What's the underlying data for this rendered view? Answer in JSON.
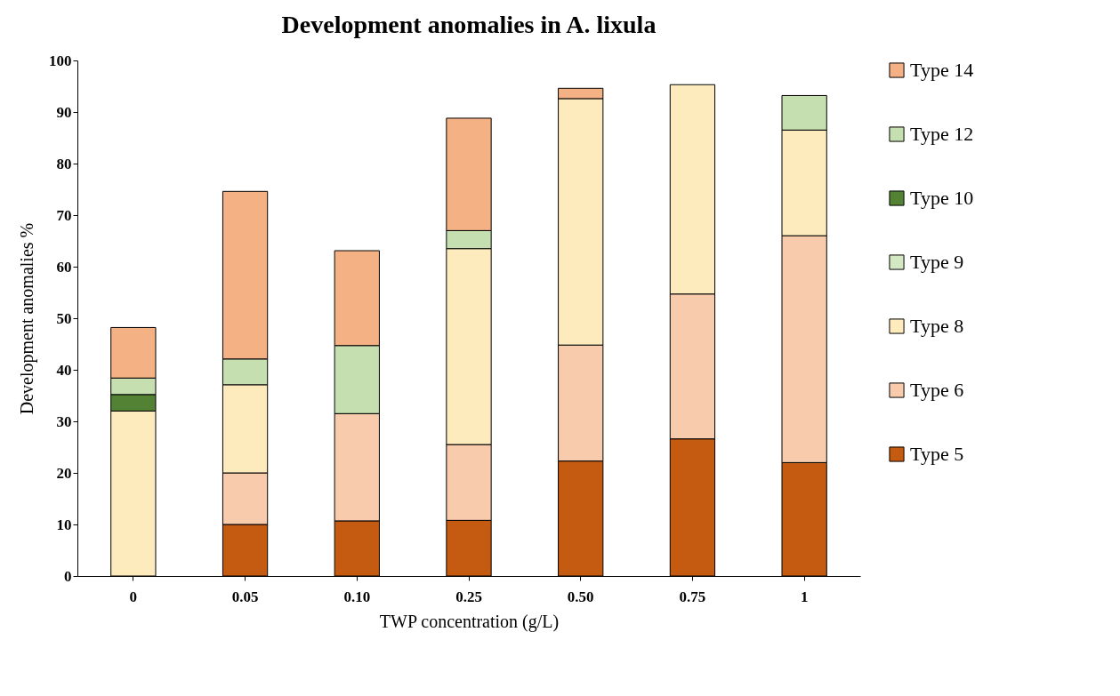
{
  "chart_data": {
    "type": "bar",
    "title": "Development anomalies in A. lixula",
    "xlabel": "TWP concentration (g/L)",
    "ylabel": "Development anomalies %",
    "categories": [
      "0",
      "0.05",
      "0.10",
      "0.25",
      "0.50",
      "0.75",
      "1"
    ],
    "stacked": true,
    "ylim": [
      0,
      100
    ],
    "yticks": [
      0,
      10,
      20,
      30,
      40,
      50,
      60,
      70,
      80,
      90,
      100
    ],
    "grid": false,
    "legend": "right",
    "series": [
      {
        "name": "Type 5",
        "color": "#c55a11",
        "values": [
          null,
          10,
          10.7,
          10.8,
          22.3,
          26.6,
          22.0
        ]
      },
      {
        "name": "Type 6",
        "color": "#f8cbad",
        "values": [
          null,
          10,
          20.8,
          14.7,
          22.5,
          28.1,
          44.0
        ]
      },
      {
        "name": "Type 8",
        "color": "#fdebbd",
        "values": [
          32,
          17.1,
          null,
          38,
          47.8,
          40.6,
          20.5
        ]
      },
      {
        "name": "Type 9",
        "color": "#d5e8c4",
        "values": [
          null,
          null,
          null,
          null,
          null,
          null,
          null
        ]
      },
      {
        "name": "Type 10",
        "color": "#548235",
        "values": [
          3.2,
          null,
          null,
          null,
          null,
          null,
          null
        ]
      },
      {
        "name": "Type 12",
        "color": "#c5dfb0",
        "values": [
          3.2,
          5.0,
          13.2,
          3.5,
          null,
          null,
          6.7
        ]
      },
      {
        "name": "Type 14",
        "color": "#f4b183",
        "values": [
          9.8,
          32.5,
          18.4,
          21.8,
          2.0,
          null,
          null
        ]
      }
    ]
  }
}
